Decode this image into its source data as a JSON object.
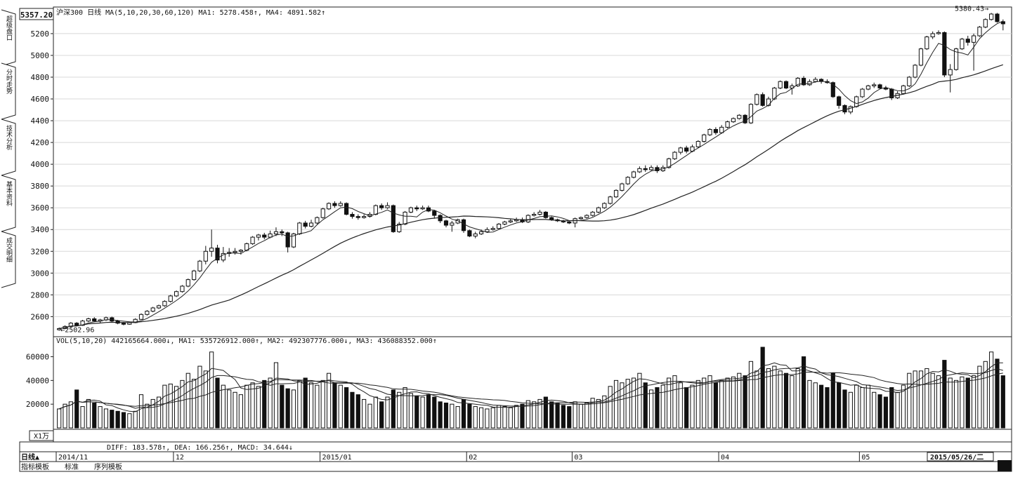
{
  "toolbar": {
    "top_price": "5357.20",
    "volume_unit": "X1万"
  },
  "side_tabs": [
    "超级盘口",
    "分时走势",
    "技术分析",
    "基本资料",
    "成交明细"
  ],
  "bottom_tabs": [
    "指标模板",
    "标准",
    "序列模板"
  ],
  "period_button": "日线▲",
  "price_panel": {
    "header": "沪深300  日线  MA(5,10,20,30,60,120)  MA1: 5278.458↑, MA4: 4891.582↑",
    "yticks": [
      2600,
      2800,
      3000,
      3200,
      3400,
      3600,
      3800,
      4000,
      4200,
      4400,
      4600,
      4800,
      5000,
      5200
    ],
    "high_label": "5380.43",
    "low_label": "2502.96"
  },
  "volume_panel": {
    "header": "VOL(5,10,20)  442165664.000↓, MA1: 535726912.000↑, MA2: 492307776.000↓, MA3: 436088352.000↑",
    "yticks": [
      20000,
      40000,
      60000
    ]
  },
  "macd_header": "DIFF: 183.578↑, DEA: 166.256↑, MACD: 34.644↓",
  "time_axis": [
    "2014/11",
    "12",
    "2015/01",
    "02",
    "03",
    "04",
    "05"
  ],
  "end_date": "2015/05/26/二",
  "chart_data": {
    "type": "candlestick",
    "title": "沪深300",
    "period": "日线",
    "y_range": [
      2480,
      5380
    ],
    "volume_range": [
      0,
      68000
    ],
    "candles": [
      {
        "o": 2480,
        "c": 2490,
        "h": 2500,
        "l": 2470,
        "v": 16000
      },
      {
        "o": 2490,
        "c": 2510,
        "h": 2520,
        "l": 2485,
        "v": 20000
      },
      {
        "o": 2510,
        "c": 2540,
        "h": 2550,
        "l": 2500,
        "v": 22000
      },
      {
        "o": 2540,
        "c": 2520,
        "h": 2550,
        "l": 2510,
        "v": 32000
      },
      {
        "o": 2520,
        "c": 2560,
        "h": 2570,
        "l": 2515,
        "v": 18000
      },
      {
        "o": 2560,
        "c": 2580,
        "h": 2590,
        "l": 2550,
        "v": 24000
      },
      {
        "o": 2580,
        "c": 2560,
        "h": 2595,
        "l": 2550,
        "v": 21000
      },
      {
        "o": 2560,
        "c": 2570,
        "h": 2580,
        "l": 2540,
        "v": 18000
      },
      {
        "o": 2570,
        "c": 2590,
        "h": 2600,
        "l": 2560,
        "v": 16000
      },
      {
        "o": 2590,
        "c": 2560,
        "h": 2600,
        "l": 2550,
        "v": 15000
      },
      {
        "o": 2560,
        "c": 2540,
        "h": 2570,
        "l": 2530,
        "v": 14000
      },
      {
        "o": 2540,
        "c": 2530,
        "h": 2550,
        "l": 2520,
        "v": 13000
      },
      {
        "o": 2530,
        "c": 2545,
        "h": 2555,
        "l": 2525,
        "v": 12000
      },
      {
        "o": 2545,
        "c": 2575,
        "h": 2585,
        "l": 2540,
        "v": 14000
      },
      {
        "o": 2575,
        "c": 2620,
        "h": 2630,
        "l": 2570,
        "v": 28000
      },
      {
        "o": 2620,
        "c": 2650,
        "h": 2660,
        "l": 2610,
        "v": 20000
      },
      {
        "o": 2650,
        "c": 2680,
        "h": 2690,
        "l": 2640,
        "v": 24000
      },
      {
        "o": 2680,
        "c": 2700,
        "h": 2710,
        "l": 2670,
        "v": 26000
      },
      {
        "o": 2700,
        "c": 2740,
        "h": 2750,
        "l": 2690,
        "v": 36000
      },
      {
        "o": 2740,
        "c": 2790,
        "h": 2800,
        "l": 2730,
        "v": 37000
      },
      {
        "o": 2790,
        "c": 2830,
        "h": 2840,
        "l": 2780,
        "v": 35000
      },
      {
        "o": 2830,
        "c": 2880,
        "h": 2890,
        "l": 2820,
        "v": 40000
      },
      {
        "o": 2880,
        "c": 2940,
        "h": 2950,
        "l": 2870,
        "v": 46000
      },
      {
        "o": 2940,
        "c": 3020,
        "h": 3030,
        "l": 2930,
        "v": 41000
      },
      {
        "o": 3020,
        "c": 3110,
        "h": 3120,
        "l": 3010,
        "v": 52000
      },
      {
        "o": 3110,
        "c": 3200,
        "h": 3250,
        "l": 3080,
        "v": 48000
      },
      {
        "o": 3200,
        "c": 3230,
        "h": 3400,
        "l": 3150,
        "v": 64000
      },
      {
        "o": 3230,
        "c": 3120,
        "h": 3260,
        "l": 3090,
        "v": 42000
      },
      {
        "o": 3120,
        "c": 3180,
        "h": 3240,
        "l": 3100,
        "v": 36000
      },
      {
        "o": 3180,
        "c": 3190,
        "h": 3230,
        "l": 3150,
        "v": 32000
      },
      {
        "o": 3190,
        "c": 3200,
        "h": 3230,
        "l": 3170,
        "v": 30000
      },
      {
        "o": 3200,
        "c": 3210,
        "h": 3220,
        "l": 3170,
        "v": 28000
      },
      {
        "o": 3210,
        "c": 3270,
        "h": 3280,
        "l": 3200,
        "v": 36000
      },
      {
        "o": 3270,
        "c": 3330,
        "h": 3340,
        "l": 3260,
        "v": 38000
      },
      {
        "o": 3330,
        "c": 3350,
        "h": 3360,
        "l": 3300,
        "v": 35000
      },
      {
        "o": 3350,
        "c": 3330,
        "h": 3370,
        "l": 3310,
        "v": 40000
      },
      {
        "o": 3330,
        "c": 3360,
        "h": 3390,
        "l": 3320,
        "v": 42000
      },
      {
        "o": 3360,
        "c": 3380,
        "h": 3420,
        "l": 3340,
        "v": 55000
      },
      {
        "o": 3380,
        "c": 3370,
        "h": 3400,
        "l": 3340,
        "v": 36000
      },
      {
        "o": 3370,
        "c": 3240,
        "h": 3380,
        "l": 3190,
        "v": 33000
      },
      {
        "o": 3240,
        "c": 3360,
        "h": 3370,
        "l": 3230,
        "v": 32000
      },
      {
        "o": 3360,
        "c": 3460,
        "h": 3470,
        "l": 3350,
        "v": 40000
      },
      {
        "o": 3460,
        "c": 3430,
        "h": 3480,
        "l": 3410,
        "v": 42000
      },
      {
        "o": 3430,
        "c": 3460,
        "h": 3490,
        "l": 3420,
        "v": 38000
      },
      {
        "o": 3460,
        "c": 3510,
        "h": 3520,
        "l": 3450,
        "v": 36000
      },
      {
        "o": 3510,
        "c": 3590,
        "h": 3600,
        "l": 3500,
        "v": 40000
      },
      {
        "o": 3590,
        "c": 3640,
        "h": 3650,
        "l": 3580,
        "v": 46000
      },
      {
        "o": 3640,
        "c": 3620,
        "h": 3660,
        "l": 3600,
        "v": 38000
      },
      {
        "o": 3620,
        "c": 3640,
        "h": 3660,
        "l": 3610,
        "v": 36000
      },
      {
        "o": 3640,
        "c": 3540,
        "h": 3650,
        "l": 3530,
        "v": 34000
      },
      {
        "o": 3540,
        "c": 3520,
        "h": 3560,
        "l": 3500,
        "v": 30000
      },
      {
        "o": 3520,
        "c": 3510,
        "h": 3540,
        "l": 3490,
        "v": 28000
      },
      {
        "o": 3510,
        "c": 3520,
        "h": 3540,
        "l": 3500,
        "v": 24000
      },
      {
        "o": 3520,
        "c": 3540,
        "h": 3560,
        "l": 3510,
        "v": 20000
      },
      {
        "o": 3540,
        "c": 3620,
        "h": 3630,
        "l": 3530,
        "v": 26000
      },
      {
        "o": 3620,
        "c": 3600,
        "h": 3640,
        "l": 3580,
        "v": 22000
      },
      {
        "o": 3600,
        "c": 3620,
        "h": 3650,
        "l": 3590,
        "v": 26000
      },
      {
        "o": 3620,
        "c": 3380,
        "h": 3630,
        "l": 3370,
        "v": 32000
      },
      {
        "o": 3380,
        "c": 3450,
        "h": 3470,
        "l": 3370,
        "v": 30000
      },
      {
        "o": 3450,
        "c": 3560,
        "h": 3570,
        "l": 3440,
        "v": 34000
      },
      {
        "o": 3560,
        "c": 3600,
        "h": 3610,
        "l": 3550,
        "v": 29000
      },
      {
        "o": 3600,
        "c": 3590,
        "h": 3620,
        "l": 3570,
        "v": 27000
      },
      {
        "o": 3590,
        "c": 3600,
        "h": 3620,
        "l": 3580,
        "v": 26000
      },
      {
        "o": 3600,
        "c": 3570,
        "h": 3620,
        "l": 3560,
        "v": 28000
      },
      {
        "o": 3570,
        "c": 3530,
        "h": 3580,
        "l": 3500,
        "v": 26000
      },
      {
        "o": 3530,
        "c": 3480,
        "h": 3540,
        "l": 3460,
        "v": 22000
      },
      {
        "o": 3480,
        "c": 3440,
        "h": 3490,
        "l": 3420,
        "v": 21000
      },
      {
        "o": 3440,
        "c": 3460,
        "h": 3480,
        "l": 3380,
        "v": 20000
      },
      {
        "o": 3460,
        "c": 3490,
        "h": 3500,
        "l": 3450,
        "v": 18000
      },
      {
        "o": 3490,
        "c": 3390,
        "h": 3500,
        "l": 3370,
        "v": 24000
      },
      {
        "o": 3390,
        "c": 3340,
        "h": 3400,
        "l": 3330,
        "v": 20000
      },
      {
        "o": 3340,
        "c": 3360,
        "h": 3380,
        "l": 3320,
        "v": 18000
      },
      {
        "o": 3360,
        "c": 3380,
        "h": 3400,
        "l": 3350,
        "v": 17000
      },
      {
        "o": 3380,
        "c": 3400,
        "h": 3420,
        "l": 3370,
        "v": 16000
      },
      {
        "o": 3400,
        "c": 3410,
        "h": 3430,
        "l": 3390,
        "v": 17000
      },
      {
        "o": 3410,
        "c": 3450,
        "h": 3460,
        "l": 3400,
        "v": 19000
      },
      {
        "o": 3450,
        "c": 3470,
        "h": 3480,
        "l": 3440,
        "v": 18000
      },
      {
        "o": 3470,
        "c": 3480,
        "h": 3500,
        "l": 3460,
        "v": 17000
      },
      {
        "o": 3480,
        "c": 3490,
        "h": 3510,
        "l": 3470,
        "v": 19000
      },
      {
        "o": 3490,
        "c": 3470,
        "h": 3510,
        "l": 3460,
        "v": 20000
      },
      {
        "o": 3470,
        "c": 3530,
        "h": 3540,
        "l": 3460,
        "v": 23000
      },
      {
        "o": 3530,
        "c": 3540,
        "h": 3560,
        "l": 3520,
        "v": 22000
      },
      {
        "o": 3540,
        "c": 3560,
        "h": 3580,
        "l": 3530,
        "v": 24000
      },
      {
        "o": 3560,
        "c": 3510,
        "h": 3570,
        "l": 3500,
        "v": 26000
      },
      {
        "o": 3510,
        "c": 3490,
        "h": 3520,
        "l": 3480,
        "v": 22000
      },
      {
        "o": 3490,
        "c": 3480,
        "h": 3500,
        "l": 3470,
        "v": 21000
      },
      {
        "o": 3480,
        "c": 3470,
        "h": 3490,
        "l": 3460,
        "v": 19000
      },
      {
        "o": 3470,
        "c": 3460,
        "h": 3480,
        "l": 3450,
        "v": 18000
      },
      {
        "o": 3460,
        "c": 3500,
        "h": 3510,
        "l": 3420,
        "v": 22000
      },
      {
        "o": 3500,
        "c": 3510,
        "h": 3520,
        "l": 3490,
        "v": 20000
      },
      {
        "o": 3510,
        "c": 3530,
        "h": 3540,
        "l": 3500,
        "v": 21000
      },
      {
        "o": 3530,
        "c": 3560,
        "h": 3570,
        "l": 3520,
        "v": 25000
      },
      {
        "o": 3560,
        "c": 3600,
        "h": 3610,
        "l": 3550,
        "v": 24000
      },
      {
        "o": 3600,
        "c": 3640,
        "h": 3650,
        "l": 3590,
        "v": 27000
      },
      {
        "o": 3640,
        "c": 3700,
        "h": 3710,
        "l": 3630,
        "v": 35000
      },
      {
        "o": 3700,
        "c": 3760,
        "h": 3770,
        "l": 3690,
        "v": 40000
      },
      {
        "o": 3760,
        "c": 3820,
        "h": 3830,
        "l": 3750,
        "v": 38000
      },
      {
        "o": 3820,
        "c": 3880,
        "h": 3890,
        "l": 3810,
        "v": 41000
      },
      {
        "o": 3880,
        "c": 3930,
        "h": 3940,
        "l": 3870,
        "v": 42000
      },
      {
        "o": 3930,
        "c": 3960,
        "h": 3980,
        "l": 3920,
        "v": 46000
      },
      {
        "o": 3960,
        "c": 3950,
        "h": 3990,
        "l": 3930,
        "v": 38000
      },
      {
        "o": 3950,
        "c": 3970,
        "h": 3990,
        "l": 3940,
        "v": 32000
      },
      {
        "o": 3970,
        "c": 3940,
        "h": 3990,
        "l": 3920,
        "v": 34000
      },
      {
        "o": 3940,
        "c": 3970,
        "h": 3990,
        "l": 3930,
        "v": 36000
      },
      {
        "o": 3970,
        "c": 4050,
        "h": 4060,
        "l": 3960,
        "v": 42000
      },
      {
        "o": 4050,
        "c": 4110,
        "h": 4120,
        "l": 4040,
        "v": 44000
      },
      {
        "o": 4110,
        "c": 4150,
        "h": 4160,
        "l": 4090,
        "v": 38000
      },
      {
        "o": 4150,
        "c": 4120,
        "h": 4170,
        "l": 4100,
        "v": 34000
      },
      {
        "o": 4120,
        "c": 4160,
        "h": 4180,
        "l": 4110,
        "v": 36000
      },
      {
        "o": 4160,
        "c": 4210,
        "h": 4220,
        "l": 4150,
        "v": 40000
      },
      {
        "o": 4210,
        "c": 4270,
        "h": 4280,
        "l": 4200,
        "v": 42000
      },
      {
        "o": 4270,
        "c": 4320,
        "h": 4330,
        "l": 4260,
        "v": 44000
      },
      {
        "o": 4320,
        "c": 4290,
        "h": 4340,
        "l": 4270,
        "v": 38000
      },
      {
        "o": 4290,
        "c": 4340,
        "h": 4360,
        "l": 4280,
        "v": 40000
      },
      {
        "o": 4340,
        "c": 4390,
        "h": 4400,
        "l": 4330,
        "v": 42000
      },
      {
        "o": 4390,
        "c": 4420,
        "h": 4430,
        "l": 4380,
        "v": 43000
      },
      {
        "o": 4420,
        "c": 4450,
        "h": 4460,
        "l": 4410,
        "v": 46000
      },
      {
        "o": 4450,
        "c": 4380,
        "h": 4460,
        "l": 4370,
        "v": 44000
      },
      {
        "o": 4380,
        "c": 4550,
        "h": 4560,
        "l": 4370,
        "v": 56000
      },
      {
        "o": 4550,
        "c": 4640,
        "h": 4650,
        "l": 4540,
        "v": 48000
      },
      {
        "o": 4640,
        "c": 4540,
        "h": 4660,
        "l": 4530,
        "v": 68000
      },
      {
        "o": 4540,
        "c": 4600,
        "h": 4620,
        "l": 4530,
        "v": 50000
      },
      {
        "o": 4600,
        "c": 4700,
        "h": 4710,
        "l": 4590,
        "v": 52000
      },
      {
        "o": 4700,
        "c": 4760,
        "h": 4770,
        "l": 4690,
        "v": 48000
      },
      {
        "o": 4760,
        "c": 4700,
        "h": 4770,
        "l": 4690,
        "v": 46000
      },
      {
        "o": 4700,
        "c": 4720,
        "h": 4740,
        "l": 4640,
        "v": 44000
      },
      {
        "o": 4720,
        "c": 4790,
        "h": 4800,
        "l": 4710,
        "v": 50000
      },
      {
        "o": 4790,
        "c": 4730,
        "h": 4810,
        "l": 4720,
        "v": 60000
      },
      {
        "o": 4730,
        "c": 4760,
        "h": 4780,
        "l": 4720,
        "v": 40000
      },
      {
        "o": 4760,
        "c": 4780,
        "h": 4800,
        "l": 4750,
        "v": 38000
      },
      {
        "o": 4780,
        "c": 4760,
        "h": 4790,
        "l": 4740,
        "v": 36000
      },
      {
        "o": 4760,
        "c": 4750,
        "h": 4780,
        "l": 4740,
        "v": 34000
      },
      {
        "o": 4750,
        "c": 4620,
        "h": 4760,
        "l": 4610,
        "v": 46000
      },
      {
        "o": 4620,
        "c": 4540,
        "h": 4630,
        "l": 4510,
        "v": 38000
      },
      {
        "o": 4540,
        "c": 4480,
        "h": 4550,
        "l": 4460,
        "v": 32000
      },
      {
        "o": 4480,
        "c": 4530,
        "h": 4540,
        "l": 4460,
        "v": 30000
      },
      {
        "o": 4530,
        "c": 4620,
        "h": 4630,
        "l": 4520,
        "v": 36000
      },
      {
        "o": 4620,
        "c": 4690,
        "h": 4700,
        "l": 4610,
        "v": 34000
      },
      {
        "o": 4690,
        "c": 4720,
        "h": 4730,
        "l": 4680,
        "v": 36000
      },
      {
        "o": 4720,
        "c": 4730,
        "h": 4750,
        "l": 4700,
        "v": 30000
      },
      {
        "o": 4730,
        "c": 4700,
        "h": 4740,
        "l": 4690,
        "v": 28000
      },
      {
        "o": 4700,
        "c": 4690,
        "h": 4720,
        "l": 4680,
        "v": 26000
      },
      {
        "o": 4690,
        "c": 4610,
        "h": 4700,
        "l": 4590,
        "v": 34000
      },
      {
        "o": 4610,
        "c": 4650,
        "h": 4670,
        "l": 4600,
        "v": 30000
      },
      {
        "o": 4650,
        "c": 4720,
        "h": 4730,
        "l": 4640,
        "v": 36000
      },
      {
        "o": 4720,
        "c": 4800,
        "h": 4810,
        "l": 4710,
        "v": 46000
      },
      {
        "o": 4800,
        "c": 4910,
        "h": 4920,
        "l": 4790,
        "v": 48000
      },
      {
        "o": 4910,
        "c": 5060,
        "h": 5070,
        "l": 4900,
        "v": 48000
      },
      {
        "o": 5060,
        "c": 5170,
        "h": 5180,
        "l": 5050,
        "v": 50000
      },
      {
        "o": 5170,
        "c": 5200,
        "h": 5220,
        "l": 5150,
        "v": 46000
      },
      {
        "o": 5200,
        "c": 5210,
        "h": 5230,
        "l": 5190,
        "v": 44000
      },
      {
        "o": 5210,
        "c": 4820,
        "h": 5220,
        "l": 4800,
        "v": 57000
      },
      {
        "o": 4820,
        "c": 4870,
        "h": 4920,
        "l": 4660,
        "v": 42000
      },
      {
        "o": 4870,
        "c": 5060,
        "h": 5070,
        "l": 4860,
        "v": 40000
      },
      {
        "o": 5060,
        "c": 5150,
        "h": 5160,
        "l": 5050,
        "v": 43000
      },
      {
        "o": 5150,
        "c": 5120,
        "h": 5180,
        "l": 5090,
        "v": 42000
      },
      {
        "o": 5120,
        "c": 5180,
        "h": 5200,
        "l": 4860,
        "v": 44000
      },
      {
        "o": 5180,
        "c": 5260,
        "h": 5270,
        "l": 5170,
        "v": 52000
      },
      {
        "o": 5260,
        "c": 5330,
        "h": 5340,
        "l": 5250,
        "v": 56000
      },
      {
        "o": 5330,
        "c": 5380,
        "h": 5390,
        "l": 5320,
        "v": 64000
      },
      {
        "o": 5380,
        "c": 5310,
        "h": 5390,
        "l": 5300,
        "v": 58000
      },
      {
        "o": 5310,
        "c": 5290,
        "h": 5330,
        "l": 5230,
        "v": 44000
      }
    ]
  }
}
